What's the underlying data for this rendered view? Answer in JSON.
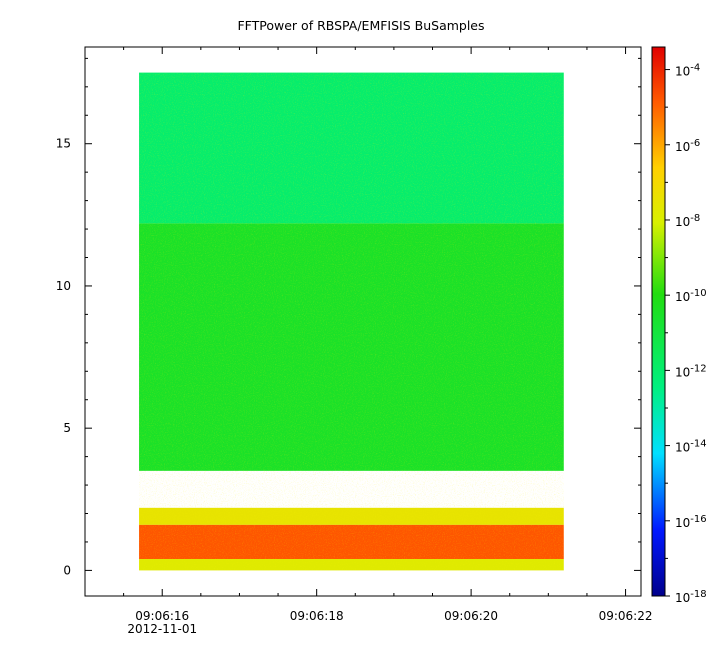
{
  "chart_data": {
    "type": "heatmap",
    "title": "FFTPower of RBSPA/EMFISIS  BuSamples",
    "x": {
      "ticks": [
        "09:06:16",
        "09:06:18",
        "09:06:20",
        "09:06:22"
      ],
      "tick_seconds": [
        16,
        18,
        20,
        22
      ],
      "range_seconds": [
        15,
        22.2
      ],
      "minor_step_seconds": 0.5,
      "date_label": "2012-11-01"
    },
    "y": {
      "ticks": [
        "0",
        "5",
        "10",
        "15"
      ],
      "tick_values": [
        0,
        5,
        10,
        15
      ],
      "range": [
        -0.9,
        18.4
      ]
    },
    "data_extent": {
      "x_seconds": [
        15.7,
        21.2
      ],
      "y": [
        0,
        17.5
      ]
    },
    "colorbar": {
      "scale": "log",
      "range_exp": [
        -18,
        -3.4
      ],
      "tick_exps": [
        -4,
        -6,
        -8,
        -10,
        -12,
        -14,
        -16,
        -18
      ],
      "tick_labels": [
        "10-4",
        "10-6",
        "10-8",
        "10-10",
        "10-12",
        "10-14",
        "10-16",
        "10-18"
      ]
    },
    "regions": [
      {
        "y": [
          12.2,
          17.5
        ],
        "log_power": -12
      },
      {
        "y": [
          3.5,
          12.2
        ],
        "log_power": -10.5
      },
      {
        "y": [
          1.6,
          2.2
        ],
        "log_power": -7.5
      },
      {
        "y": [
          0.4,
          1.6
        ],
        "log_power": -4.8
      }
    ]
  }
}
